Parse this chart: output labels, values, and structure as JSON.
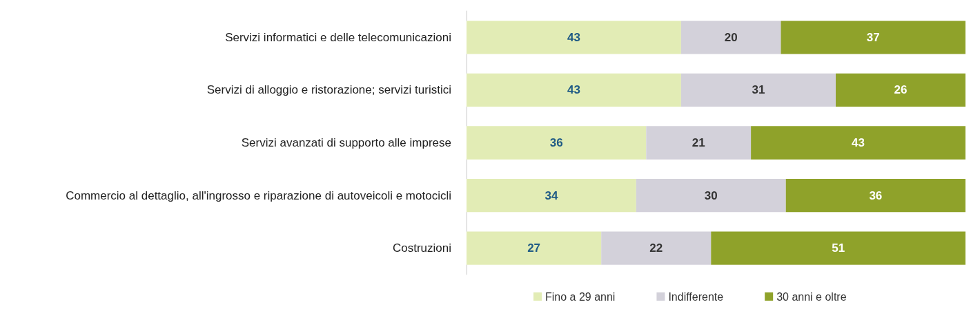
{
  "chart_data": {
    "type": "bar",
    "orientation": "horizontal",
    "stacked": true,
    "data_labels": true,
    "legend": "bottom",
    "grid": false,
    "xlim": [
      0,
      100
    ],
    "tick_labels": "y",
    "categories": [
      "Servizi informatici e delle telecomunicazioni",
      "Servizi di alloggio e ristorazione; servizi turistici",
      "Servizi avanzati di supporto alle imprese",
      "Commercio al dettaglio, all'ingrosso e riparazione di autoveicoli e motocicli",
      "Costruzioni"
    ],
    "series": [
      {
        "name": "Fino a 29 anni",
        "color": "#e2ecb5",
        "values": [
          43,
          43,
          36,
          34,
          27
        ]
      },
      {
        "name": "Indifferente",
        "color": "#d3d1da",
        "values": [
          20,
          31,
          21,
          30,
          22
        ]
      },
      {
        "name": "30 anni e oltre",
        "color": "#8fa22a",
        "values": [
          37,
          26,
          43,
          36,
          51
        ]
      }
    ]
  }
}
